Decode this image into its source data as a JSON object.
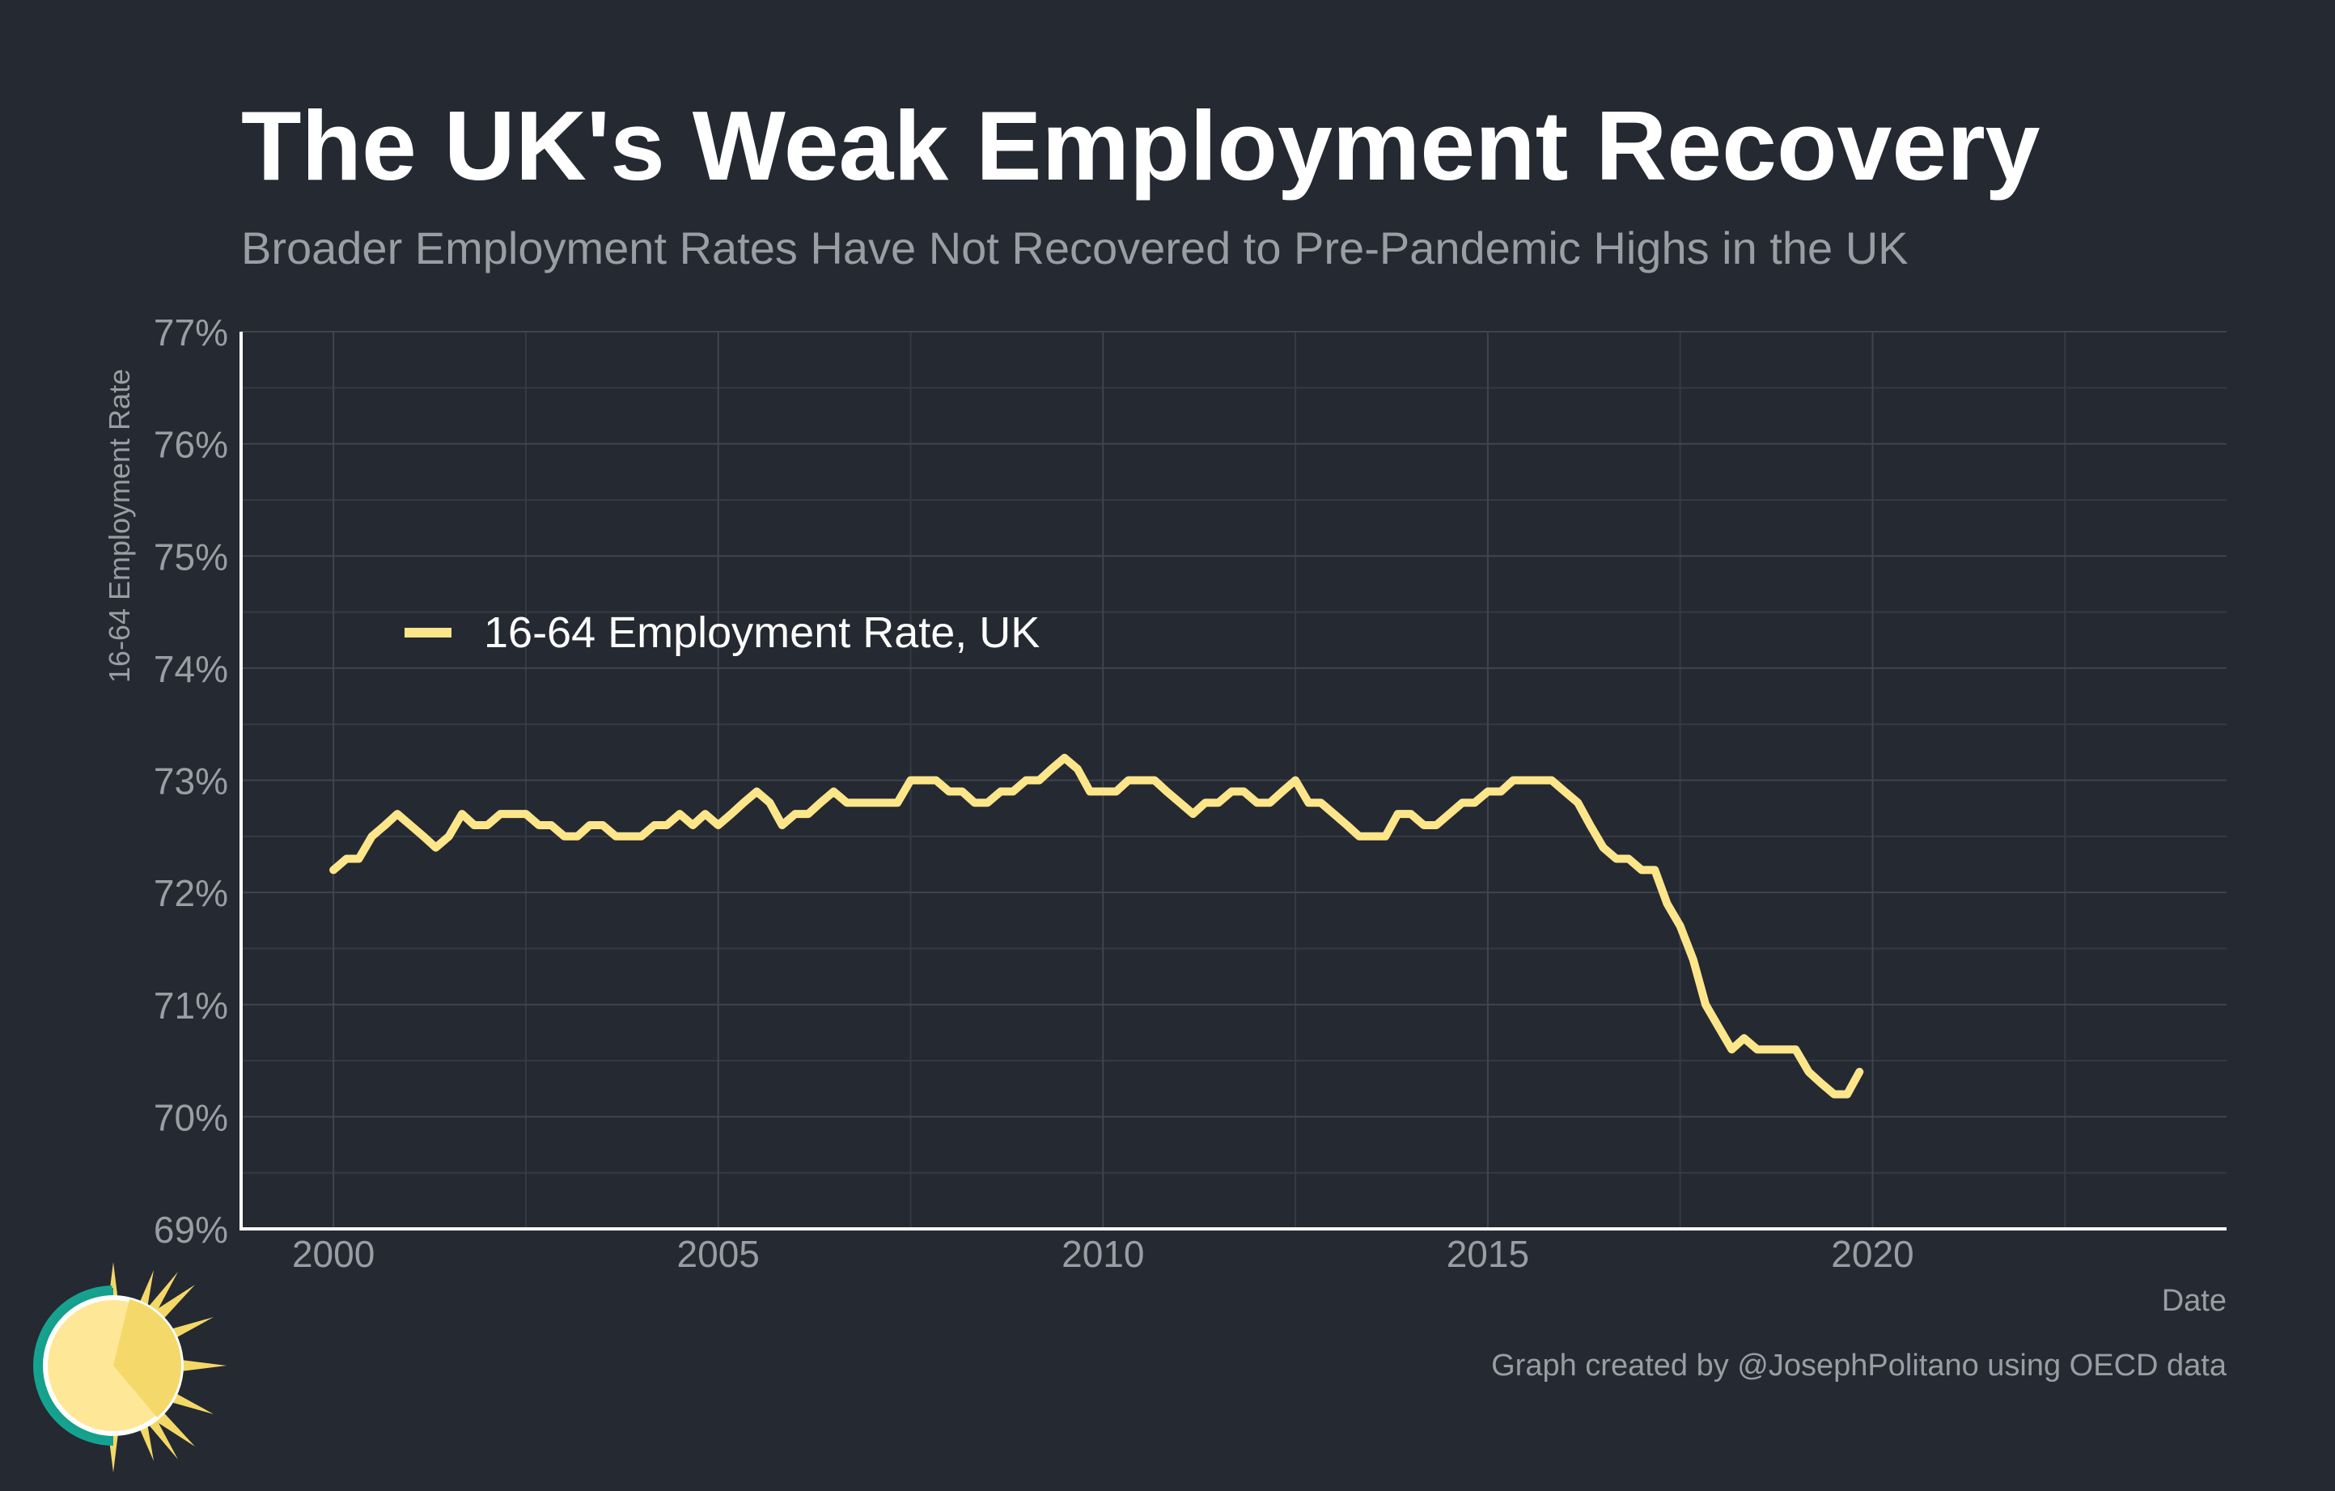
{
  "chart_data": {
    "type": "line",
    "title": "The UK's Weak Employment Recovery",
    "subtitle": "Broader Employment Rates Have Not Recovered to Pre-Pandemic Highs in the UK",
    "xlabel": "Date",
    "ylabel": "16-64 Employment Rate",
    "xlim": [
      1998.8,
      2024.6
    ],
    "ylim": [
      69,
      77
    ],
    "x_ticks": [
      2000,
      2005,
      2010,
      2015,
      2020
    ],
    "x_tick_labels": [
      "2000",
      "2005",
      "2010",
      "2015",
      "2020"
    ],
    "y_ticks": [
      69,
      70,
      71,
      72,
      73,
      74,
      75,
      76,
      77
    ],
    "y_tick_labels": [
      "69%",
      "70%",
      "71%",
      "72%",
      "73%",
      "74%",
      "75%",
      "76%",
      "77%"
    ],
    "grid": true,
    "legend_position": "upper-left",
    "caption": "Graph created by @JosephPolitano using OECD data",
    "series": [
      {
        "name": "16-64 Employment Rate, UK",
        "color": "#fde68a",
        "points": [
          [
            2000.0,
            72.2
          ],
          [
            2000.17,
            72.3
          ],
          [
            2000.33,
            72.3
          ],
          [
            2000.5,
            72.5
          ],
          [
            2000.67,
            72.6
          ],
          [
            2000.83,
            72.7
          ],
          [
            2001.0,
            72.6
          ],
          [
            2001.17,
            72.5
          ],
          [
            2001.33,
            72.4
          ],
          [
            2001.5,
            72.5
          ],
          [
            2001.67,
            72.7
          ],
          [
            2001.83,
            72.6
          ],
          [
            2002.0,
            72.6
          ],
          [
            2002.17,
            72.7
          ],
          [
            2002.33,
            72.7
          ],
          [
            2002.5,
            72.7
          ],
          [
            2002.67,
            72.6
          ],
          [
            2002.83,
            72.6
          ],
          [
            2003.0,
            72.5
          ],
          [
            2003.17,
            72.5
          ],
          [
            2003.33,
            72.6
          ],
          [
            2003.5,
            72.6
          ],
          [
            2003.67,
            72.5
          ],
          [
            2003.83,
            72.5
          ],
          [
            2004.0,
            72.5
          ],
          [
            2004.17,
            72.6
          ],
          [
            2004.33,
            72.6
          ],
          [
            2004.5,
            72.7
          ],
          [
            2004.67,
            72.6
          ],
          [
            2004.83,
            72.7
          ],
          [
            2005.0,
            72.6
          ],
          [
            2005.17,
            72.7
          ],
          [
            2005.33,
            72.8
          ],
          [
            2005.5,
            72.9
          ],
          [
            2005.67,
            72.8
          ],
          [
            2005.83,
            72.6
          ],
          [
            2006.0,
            72.7
          ],
          [
            2006.17,
            72.7
          ],
          [
            2006.33,
            72.8
          ],
          [
            2006.5,
            72.9
          ],
          [
            2006.67,
            72.8
          ],
          [
            2006.83,
            72.8
          ],
          [
            2007.0,
            72.8
          ],
          [
            2007.17,
            72.8
          ],
          [
            2007.33,
            72.8
          ],
          [
            2007.5,
            73.0
          ],
          [
            2007.67,
            73.0
          ],
          [
            2007.83,
            73.0
          ],
          [
            2008.0,
            72.9
          ],
          [
            2008.17,
            72.9
          ],
          [
            2008.33,
            72.8
          ],
          [
            2008.5,
            72.8
          ],
          [
            2008.67,
            72.9
          ],
          [
            2008.83,
            72.9
          ],
          [
            2009.0,
            73.0
          ],
          [
            2009.17,
            73.0
          ],
          [
            2009.33,
            73.1
          ],
          [
            2009.5,
            73.2
          ],
          [
            2009.67,
            73.1
          ],
          [
            2009.83,
            72.9
          ],
          [
            2010.0,
            72.9
          ],
          [
            2010.17,
            72.9
          ],
          [
            2010.33,
            73.0
          ],
          [
            2010.5,
            73.0
          ],
          [
            2010.67,
            73.0
          ],
          [
            2010.83,
            72.9
          ],
          [
            2011.0,
            72.8
          ],
          [
            2011.17,
            72.7
          ],
          [
            2011.33,
            72.8
          ],
          [
            2011.5,
            72.8
          ],
          [
            2011.67,
            72.9
          ],
          [
            2011.83,
            72.9
          ],
          [
            2012.0,
            72.8
          ],
          [
            2012.17,
            72.8
          ],
          [
            2012.33,
            72.9
          ],
          [
            2012.5,
            73.0
          ],
          [
            2012.67,
            72.8
          ],
          [
            2012.83,
            72.8
          ],
          [
            2013.0,
            72.7
          ],
          [
            2013.17,
            72.6
          ],
          [
            2013.33,
            72.5
          ],
          [
            2013.5,
            72.5
          ],
          [
            2013.67,
            72.5
          ],
          [
            2013.83,
            72.7
          ],
          [
            2014.0,
            72.7
          ],
          [
            2014.17,
            72.6
          ],
          [
            2014.33,
            72.6
          ],
          [
            2014.5,
            72.7
          ],
          [
            2014.67,
            72.8
          ],
          [
            2014.83,
            72.8
          ],
          [
            2015.0,
            72.9
          ],
          [
            2015.17,
            72.9
          ],
          [
            2015.33,
            73.0
          ],
          [
            2015.5,
            73.0
          ],
          [
            2015.67,
            73.0
          ],
          [
            2015.83,
            73.0
          ],
          [
            2016.0,
            72.9
          ],
          [
            2016.17,
            72.8
          ],
          [
            2016.33,
            72.6
          ],
          [
            2016.5,
            72.4
          ],
          [
            2016.67,
            72.3
          ],
          [
            2016.83,
            72.3
          ],
          [
            2017.0,
            72.2
          ],
          [
            2017.17,
            72.2
          ],
          [
            2017.33,
            71.9
          ],
          [
            2017.5,
            71.7
          ],
          [
            2017.67,
            71.4
          ],
          [
            2017.83,
            71.0
          ],
          [
            2018.0,
            70.8
          ],
          [
            2018.17,
            70.6
          ],
          [
            2018.33,
            70.7
          ],
          [
            2018.5,
            70.6
          ],
          [
            2018.67,
            70.6
          ],
          [
            2018.83,
            70.6
          ],
          [
            2019.0,
            70.6
          ],
          [
            2019.17,
            70.4
          ],
          [
            2019.33,
            70.3
          ],
          [
            2019.5,
            70.2
          ],
          [
            2019.67,
            70.2
          ],
          [
            2019.83,
            70.4
          ]
        ]
      }
    ]
  },
  "branding": {
    "logo": "sun-logo"
  }
}
